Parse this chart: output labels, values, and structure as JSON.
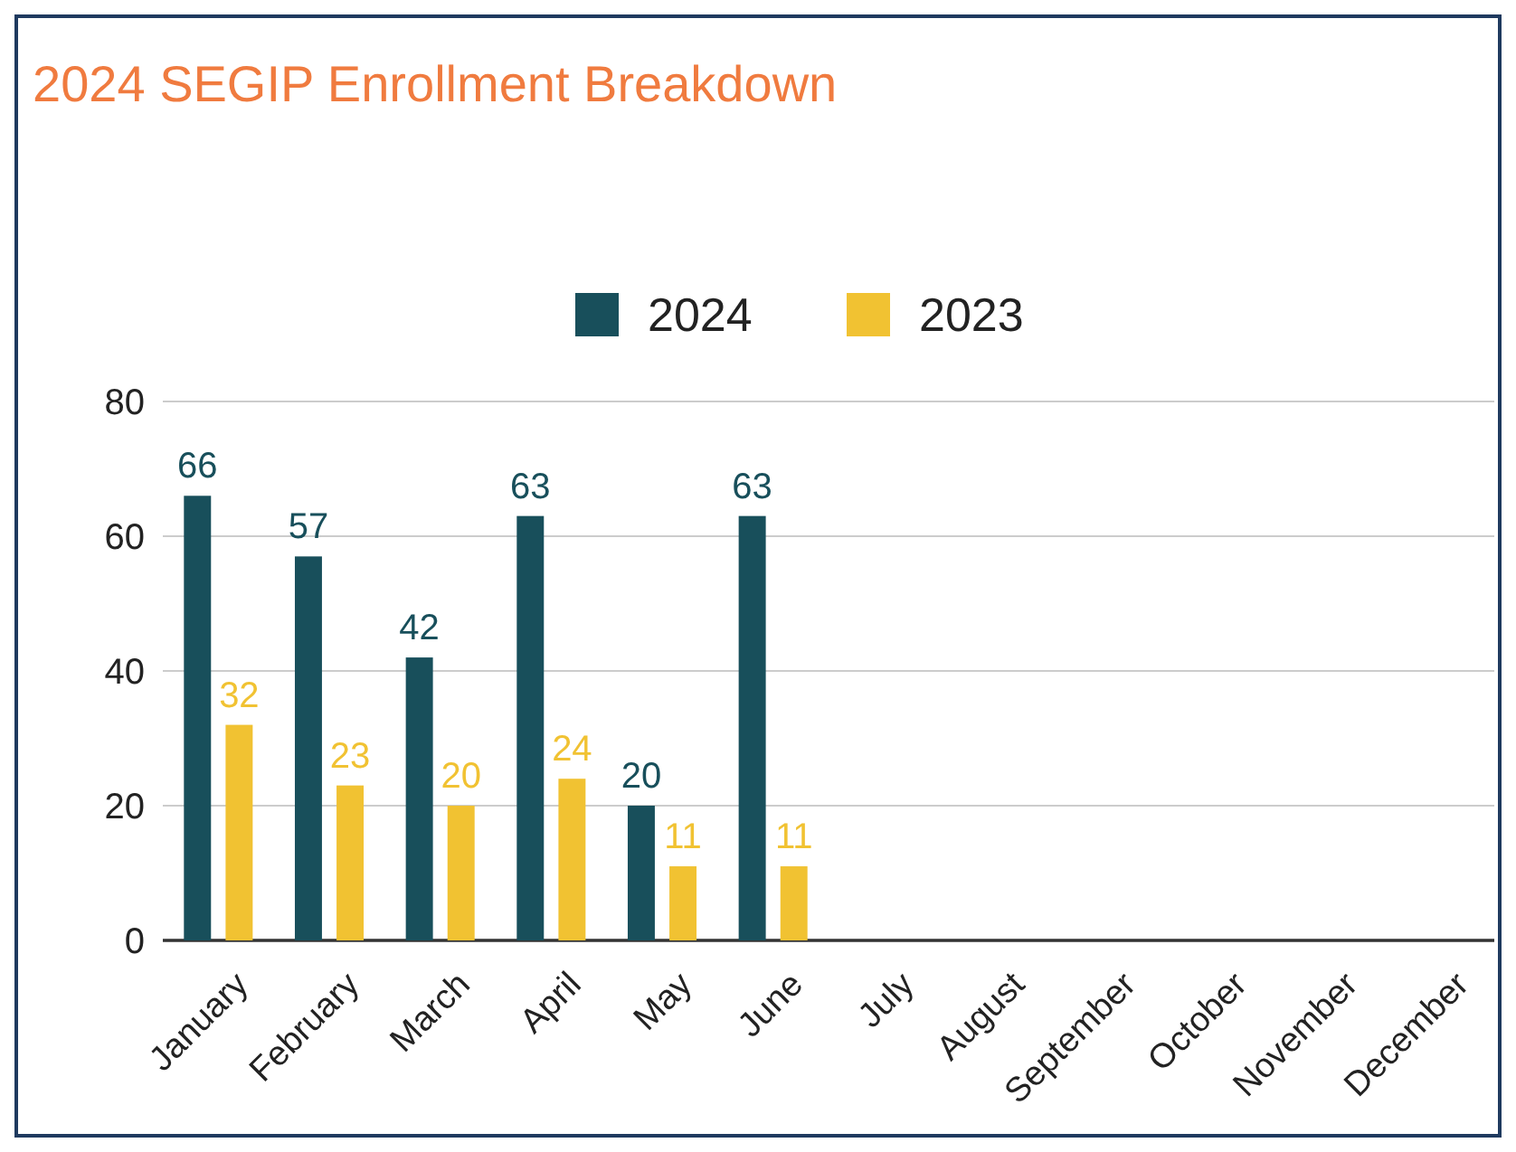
{
  "chart_data": {
    "type": "bar",
    "title": "2024 SEGIP Enrollment Breakdown",
    "categories": [
      "January",
      "February",
      "March",
      "April",
      "May",
      "June",
      "July",
      "August",
      "September",
      "October",
      "November",
      "December"
    ],
    "series": [
      {
        "name": "2024",
        "color": "#184f5b",
        "values": [
          66,
          57,
          42,
          63,
          20,
          63,
          null,
          null,
          null,
          null,
          null,
          null
        ]
      },
      {
        "name": "2023",
        "color": "#f1c232",
        "values": [
          32,
          23,
          20,
          24,
          11,
          11,
          null,
          null,
          null,
          null,
          null,
          null
        ]
      }
    ],
    "ylim": [
      0,
      80
    ],
    "yticks": [
      0,
      20,
      40,
      60,
      80
    ],
    "grid": "y",
    "legend": "top",
    "data_labels": true
  }
}
